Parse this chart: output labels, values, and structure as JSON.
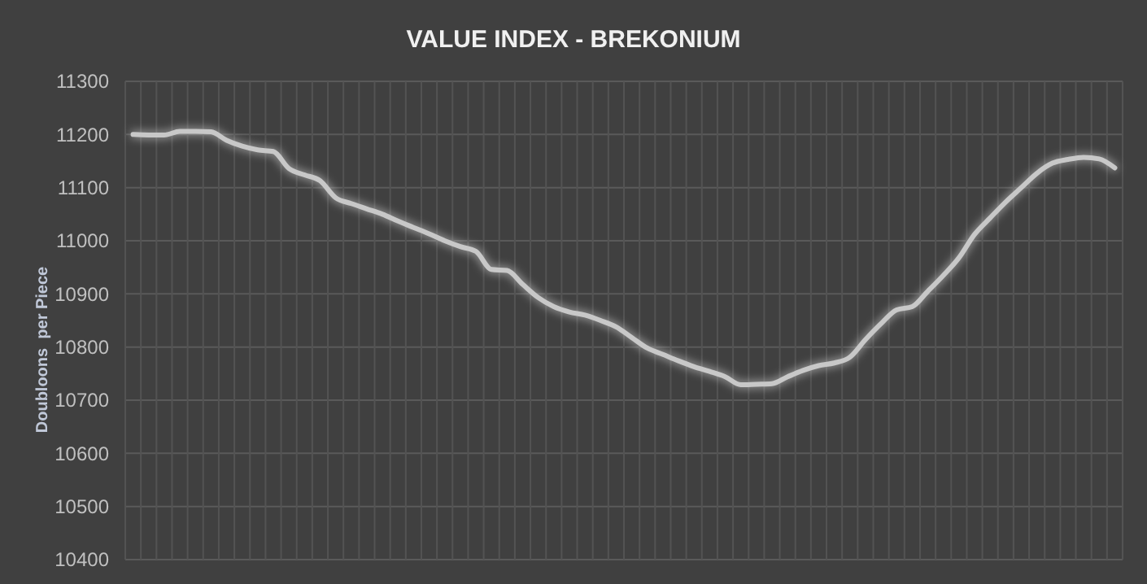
{
  "chart_data": {
    "type": "line",
    "title": "VALUE INDEX - BREKONIUM",
    "ylabel": "Doubloons  per Piece",
    "categories": [
      null,
      null,
      null,
      null,
      null,
      null,
      null,
      null,
      null,
      null,
      null,
      null,
      null,
      null,
      null,
      null,
      null,
      null,
      null,
      null,
      null,
      null,
      null,
      null,
      null,
      null,
      null,
      null,
      null,
      null,
      null,
      null,
      null,
      null,
      null,
      null,
      null,
      null,
      null,
      null,
      null,
      null,
      null,
      null,
      null,
      null,
      null,
      null,
      null,
      null,
      null,
      null,
      null,
      null,
      null,
      null,
      null,
      null,
      null,
      null,
      null,
      null,
      null,
      null
    ],
    "series": [
      {
        "color": "#c8c8c8",
        "values": [
          11200,
          11199,
          11199,
          11206,
          11206,
          11205,
          11189,
          11178,
          11171,
          11168,
          11136,
          11124,
          11113,
          11081,
          11070,
          11060,
          11050,
          11037,
          11025,
          11013,
          11000,
          10989,
          10980,
          10946,
          10944,
          10918,
          10893,
          10876,
          10866,
          10860,
          10850,
          10838,
          10818,
          10798,
          10786,
          10774,
          10763,
          10754,
          10744,
          10729,
          10730,
          10731,
          10744,
          10756,
          10765,
          10770,
          10781,
          10814,
          10844,
          10870,
          10876,
          10905,
          10935,
          10968,
          11012,
          11043,
          11073,
          11100,
          11127,
          11146,
          11153,
          11157,
          11154,
          11137
        ]
      }
    ],
    "ylim": [
      10400,
      11300
    ],
    "yticks": [
      10400,
      10500,
      10600,
      10700,
      10800,
      10900,
      11000,
      11100,
      11200,
      11300
    ],
    "grid": true,
    "tick_labels": "y",
    "marker": "none",
    "line_style": "solid"
  }
}
